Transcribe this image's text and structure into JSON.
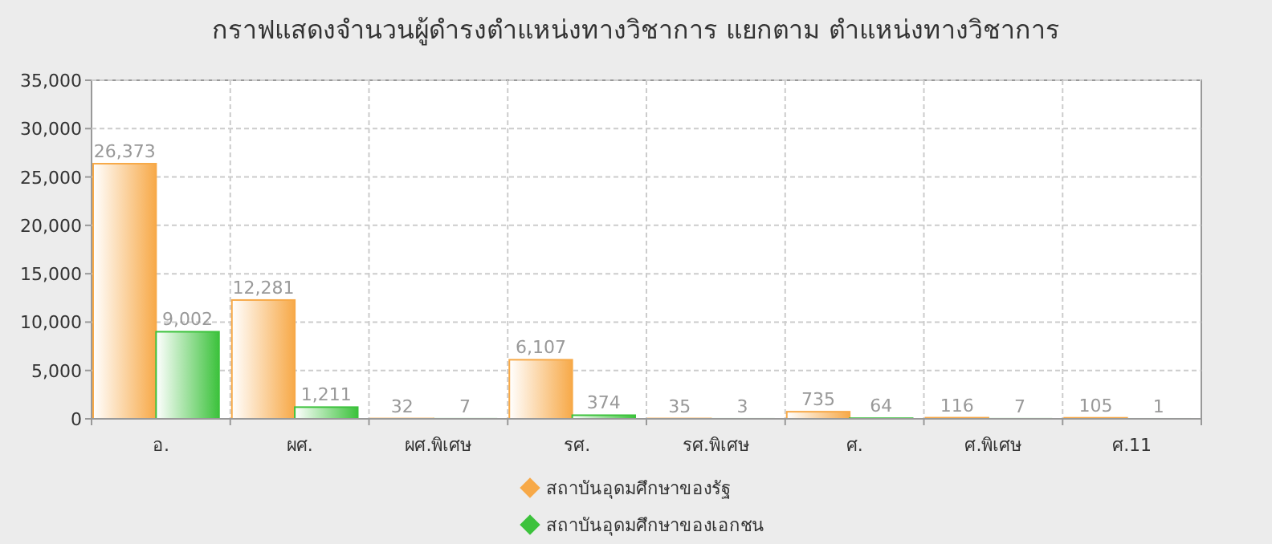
{
  "chart_data": {
    "type": "bar",
    "title": "กราฟแสดงจำนวนผู้ดำรงตำแหน่งทางวิชาการ แยกตาม ตำแหน่งทางวิชาการ",
    "categories": [
      "อ.",
      "ผศ.",
      "ผศ.พิเศษ",
      "รศ.",
      "รศ.พิเศษ",
      "ศ.",
      "ศ.พิเศษ",
      "ศ.11"
    ],
    "series": [
      {
        "name": "สถาบันอุดมศึกษาของรัฐ",
        "color": "#f7a948",
        "values": [
          26373,
          12281,
          32,
          6107,
          35,
          735,
          116,
          105
        ],
        "value_labels": [
          "26,373",
          "12,281",
          "32",
          "6,107",
          "35",
          "735",
          "116",
          "105"
        ]
      },
      {
        "name": "สถาบันอุดมศึกษาของเอกชน",
        "color": "#3cc23c",
        "values": [
          9002,
          1211,
          7,
          374,
          3,
          64,
          7,
          1
        ],
        "value_labels": [
          "9,002",
          "1,211",
          "7",
          "374",
          "3",
          "64",
          "7",
          "1"
        ]
      }
    ],
    "ylim": [
      0,
      35000
    ],
    "yticks": [
      0,
      {
        "value": 5000,
        "label": "5,000"
      },
      {
        "value": 10000,
        "label": "10,000"
      },
      {
        "value": 15000,
        "label": "15,000"
      },
      {
        "value": 20000,
        "label": "20,000"
      },
      {
        "value": 25000,
        "label": "25,000"
      },
      {
        "value": 30000,
        "label": "30,000"
      },
      {
        "value": 35000,
        "label": "35,000"
      }
    ],
    "grid": true,
    "legend": "bottom"
  }
}
